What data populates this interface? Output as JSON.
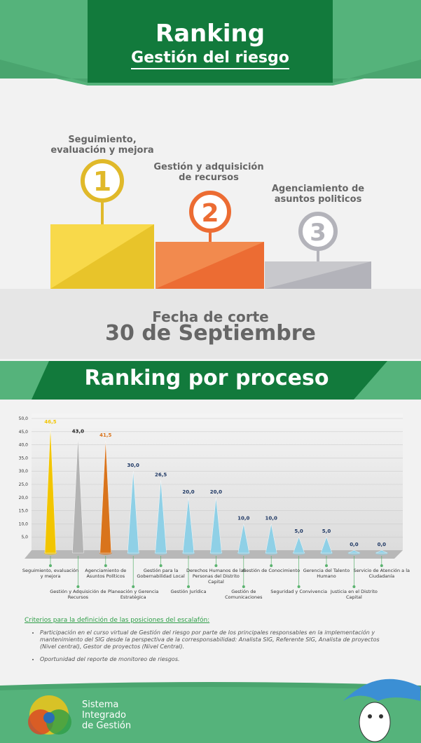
{
  "header": {
    "title": "Ranking",
    "subtitle": "Gestión del riesgo"
  },
  "podium": [
    {
      "rank": 1,
      "label": "Seguimiento, evaluación y mejora"
    },
    {
      "rank": 2,
      "label": "Gestión y adquisición de recursos"
    },
    {
      "rank": 3,
      "label": "Agenciamiento de asuntos politicos"
    }
  ],
  "cutoff": {
    "label": "Fecha de corte",
    "date": "30 de Septiembre"
  },
  "section_title": "Ranking por proceso",
  "chart_data": {
    "type": "cone",
    "categories": [
      "Seguimiento, evaluación y mejora",
      "Gestión y Adquisición de Recursos",
      "Agenciamiento de Asuntos Políticos",
      "Planeación y Gerencia Estratégica",
      "Gestión para la Gobernabilidad Local",
      "Gestión Jurídica",
      "Derechos Humanos de las Personas del Distrito Capital",
      "Gestión de Comunicaciones",
      "Gestión de Conocimiento",
      "Seguridad y Convivencia",
      "Gerencia del Talento Humano",
      "Justicia en el Distrito Capital",
      "Servicio de Atención a la Ciudadanía"
    ],
    "values": [
      46.5,
      43,
      41.5,
      30,
      26.5,
      20,
      20,
      10,
      10,
      5,
      5,
      0,
      0
    ],
    "value_labels": [
      "46,5",
      "43,0",
      "41,5",
      "30,0",
      "26,5",
      "20,0",
      "20,0",
      "10,0",
      "10,0",
      "5,0",
      "5,0",
      "0,0",
      "0,0"
    ],
    "colors": [
      "#f2c500",
      "#b3b3b3",
      "#d9741c",
      "#8fd0e6",
      "#8fd0e6",
      "#8fd0e6",
      "#8fd0e6",
      "#8fd0e6",
      "#8fd0e6",
      "#8fd0e6",
      "#8fd0e6",
      "#8fd0e6",
      "#8fd0e6"
    ],
    "ylim": [
      0,
      50
    ],
    "yticks": [
      {
        "value": 5,
        "label": "5,0"
      },
      {
        "value": 10,
        "label": "10,0"
      },
      {
        "value": 15,
        "label": "15,0"
      },
      {
        "value": 20,
        "label": "20,0"
      },
      {
        "value": 25,
        "label": "25,0"
      },
      {
        "value": 30,
        "label": "30,0"
      },
      {
        "value": 35,
        "label": "35,0"
      },
      {
        "value": 40,
        "label": "40,0"
      },
      {
        "value": 45,
        "label": "45,0"
      },
      {
        "value": 50,
        "label": "50,0"
      }
    ],
    "grid": true
  },
  "criteria": {
    "title": "Criterios para la definición de las posiciones del escalafón:",
    "items": [
      "Participación en el curso virtual de Gestión del riesgo por parte de los principales responsables en la implementación y mantenimiento del SIG desde la perspectiva de la corresponsabilidad: Analista SIG, Referente SIG, Analista de proyectos (Nivel central), Gestor de proyectos (Nivel Central).",
      "Oportunidad del reporte de monitoreo de riesgos."
    ]
  },
  "footer": {
    "lines": [
      "Sistema",
      "Integrado",
      "de Gestión"
    ]
  }
}
